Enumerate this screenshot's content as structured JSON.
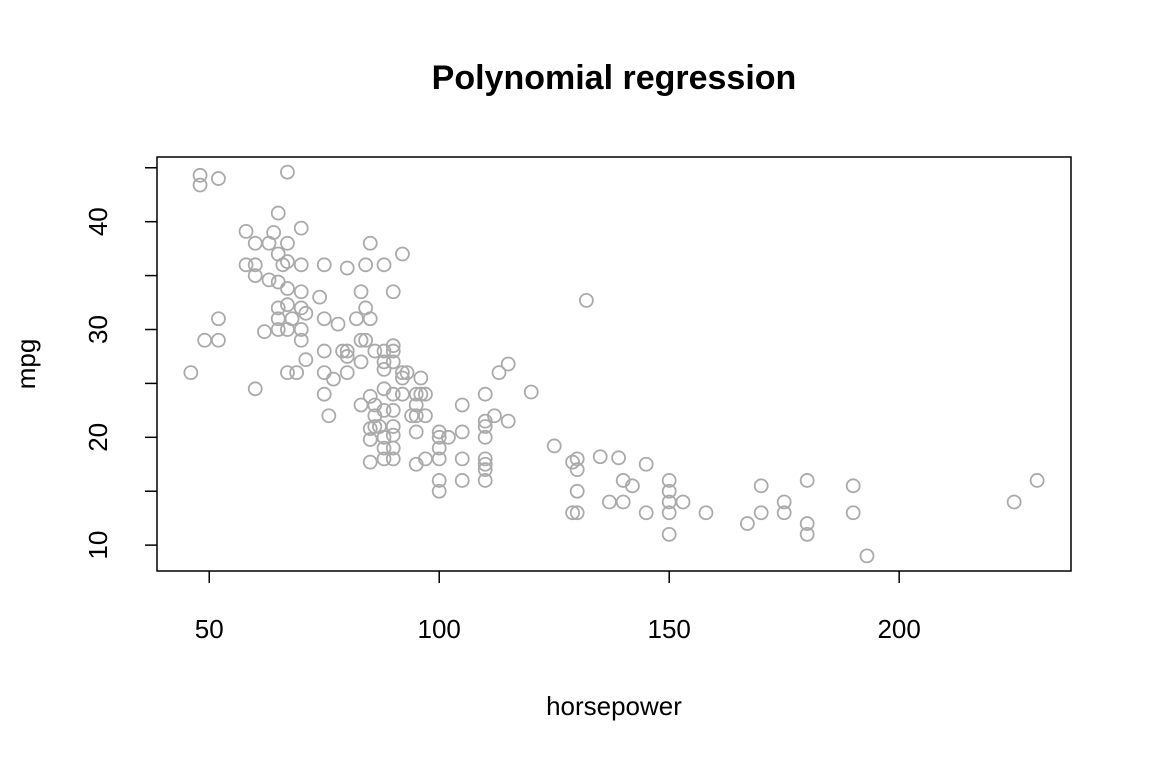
{
  "chart_data": {
    "type": "scatter",
    "title": "Polynomial regression",
    "xlabel": "horsepower",
    "ylabel": "mpg",
    "x": [
      46,
      48,
      48,
      52,
      49,
      52,
      52,
      60,
      58,
      58,
      60,
      60,
      60,
      62,
      63,
      63,
      64,
      65,
      65,
      65,
      65,
      65,
      65,
      67,
      67,
      67,
      67,
      67,
      67,
      67,
      66,
      68,
      69,
      70,
      70,
      70,
      70,
      70,
      70,
      71,
      71,
      75,
      74,
      75,
      75,
      75,
      75,
      76,
      77,
      78,
      79,
      80,
      80,
      80,
      80,
      82,
      83,
      83,
      83,
      83,
      84,
      84,
      84,
      85,
      85,
      85,
      85,
      85,
      85,
      86,
      86,
      86,
      86,
      87,
      88,
      88,
      88,
      88,
      88,
      88,
      88,
      88,
      88,
      92,
      90,
      90,
      90,
      90,
      90,
      90,
      90,
      90,
      90,
      90,
      92,
      92,
      93,
      92,
      94,
      95,
      95,
      95,
      95,
      95,
      96,
      96,
      97,
      97,
      97,
      100,
      100,
      100,
      100,
      100,
      100,
      102,
      105,
      105,
      105,
      105,
      110,
      110,
      110,
      110,
      110,
      110,
      110,
      110,
      112,
      113,
      115,
      115,
      120,
      125,
      129,
      130,
      130,
      130,
      129,
      130,
      132,
      135,
      137,
      139,
      140,
      140,
      142,
      145,
      145,
      150,
      150,
      150,
      150,
      150,
      153,
      158,
      167,
      170,
      170,
      175,
      175,
      180,
      180,
      180,
      190,
      190,
      193,
      225,
      230
    ],
    "y": [
      26,
      43.4,
      44.3,
      44,
      29,
      29,
      31,
      24.5,
      39.1,
      36,
      38,
      36,
      35,
      29.8,
      38,
      34.6,
      39,
      40.8,
      37,
      34.4,
      32,
      31,
      30,
      44.6,
      38,
      36.3,
      33.8,
      32.3,
      30,
      26,
      36,
      31,
      26,
      39.4,
      36,
      33.5,
      32,
      30,
      29,
      31.5,
      27.2,
      31,
      33,
      36,
      28,
      26,
      24,
      22,
      25.4,
      30.5,
      28,
      35.7,
      28,
      26,
      27.5,
      31,
      33.5,
      29,
      27,
      23,
      32,
      36,
      29,
      38,
      31,
      23.8,
      20.8,
      19.8,
      17.7,
      28,
      22,
      21,
      23,
      21,
      36,
      28,
      27,
      26.3,
      24.5,
      22.5,
      20,
      19,
      18,
      37,
      33.5,
      28.5,
      28,
      27,
      24,
      22.5,
      21,
      20.2,
      19,
      18,
      26,
      25.5,
      26,
      24,
      22,
      20.5,
      23,
      24,
      22,
      17.5,
      25.5,
      24,
      24,
      22,
      18,
      20.5,
      20,
      19,
      18,
      16,
      15,
      20,
      23,
      20.5,
      18,
      16,
      24,
      21.5,
      21,
      20,
      18,
      17.5,
      17,
      16,
      22,
      26,
      21.5,
      26.8,
      24.2,
      19.2,
      17.7,
      18,
      17,
      15,
      13,
      13,
      32.7,
      18.2,
      14,
      18.1,
      16,
      14,
      15.5,
      17.5,
      13,
      16,
      15,
      14,
      13,
      11,
      14,
      13,
      12,
      15.5,
      13,
      14,
      13,
      16,
      12,
      11,
      15.5,
      13,
      9,
      14,
      16
    ],
    "color": "#aaaaaa",
    "xlim": [
      38.64,
      237.36
    ],
    "ylim": [
      7.6,
      46.0
    ],
    "xticks": [
      50,
      100,
      150,
      200
    ],
    "yticks": [
      10,
      20,
      30,
      40
    ],
    "y_minor_ticks": [
      15,
      25,
      35,
      45
    ]
  }
}
